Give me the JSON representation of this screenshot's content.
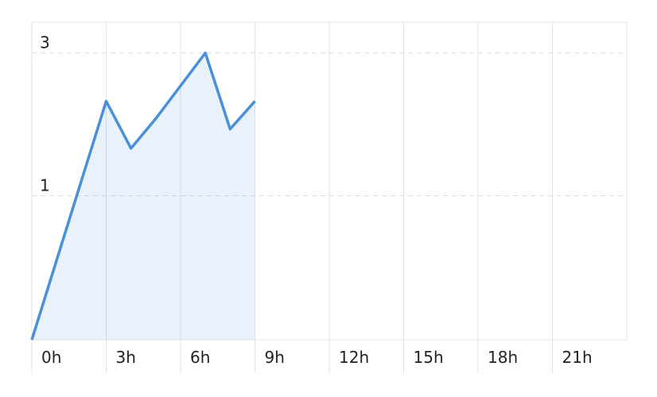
{
  "chart_data": {
    "type": "area",
    "x": [
      0,
      3,
      4,
      5,
      7,
      8,
      9
    ],
    "values": [
      0.33,
      2.07,
      1.44,
      1.81,
      3,
      1.67,
      2.07
    ],
    "color": "#4a90d9",
    "xlim": [
      0,
      24
    ],
    "xticks": [
      {
        "value": 0,
        "label": "0h"
      },
      {
        "value": 3,
        "label": "3h"
      },
      {
        "value": 6,
        "label": "6h"
      },
      {
        "value": 9,
        "label": "9h"
      },
      {
        "value": 12,
        "label": "12h"
      },
      {
        "value": 15,
        "label": "15h"
      },
      {
        "value": 18,
        "label": "18h"
      },
      {
        "value": 21,
        "label": "21h"
      }
    ],
    "ylim": [
      0.33,
      3.8
    ],
    "yticks": [
      1,
      3
    ],
    "log_scale": true,
    "grid": true
  }
}
